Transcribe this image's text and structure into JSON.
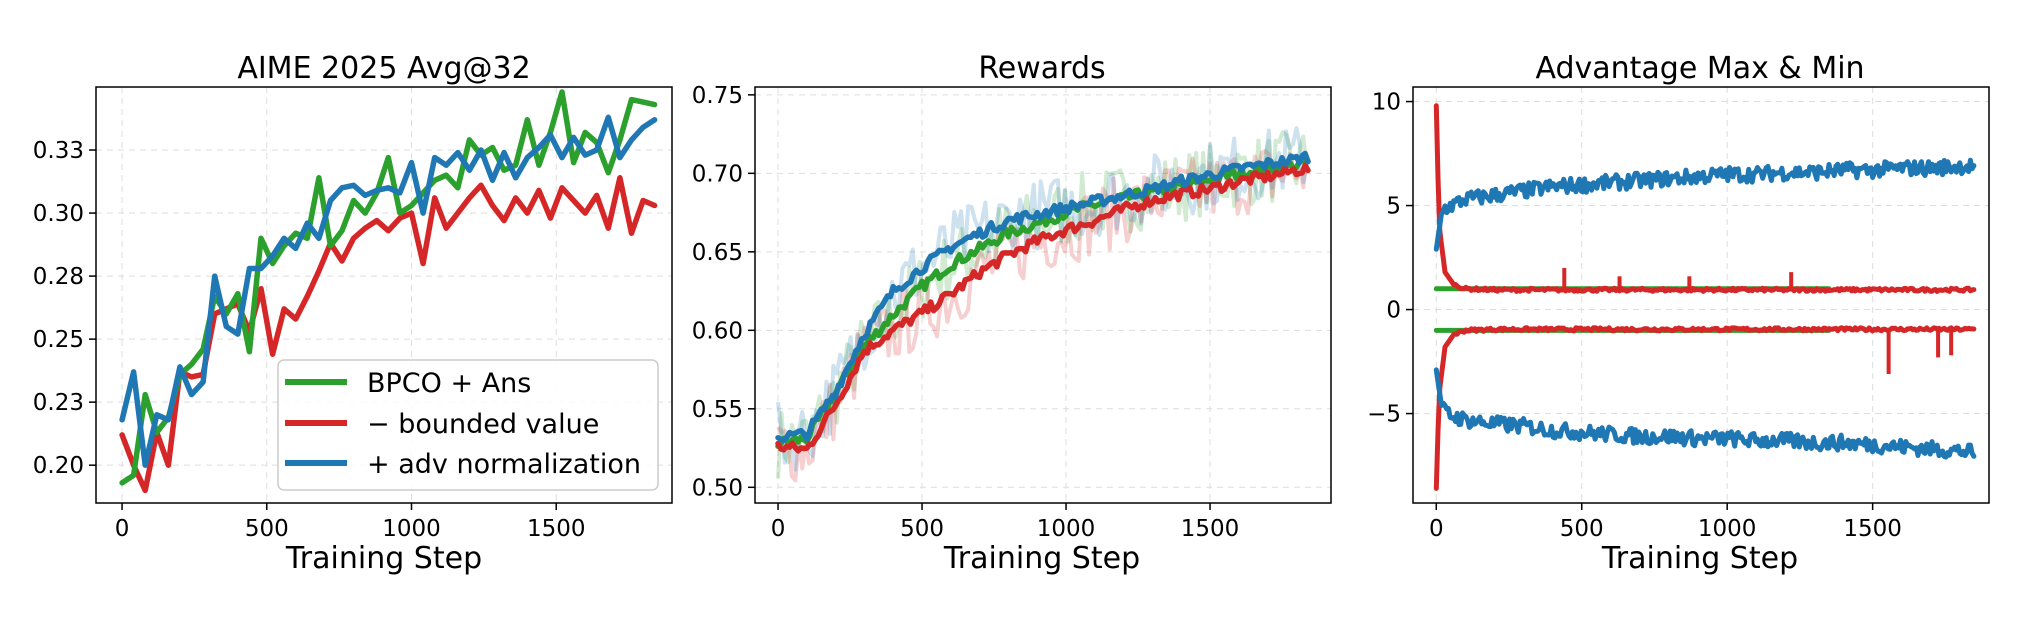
{
  "chart_data": [
    {
      "type": "line",
      "title": "AIME 2025 Avg@32",
      "xlabel": "Training Step",
      "ylabel": "",
      "xlim": [
        -90,
        1900
      ],
      "ylim": [
        0.185,
        0.35
      ],
      "x_ticks": [
        0,
        500,
        1000,
        1500
      ],
      "y_ticks": [
        0.2,
        0.225,
        0.25,
        0.275,
        0.3,
        0.325
      ],
      "y_tick_labels": [
        "0.20",
        "0.23",
        "0.25",
        "0.28",
        "0.30",
        "0.33"
      ],
      "grid": true,
      "legend": "lower-right",
      "series": [
        {
          "name": "BPCO + Ans",
          "color": "#2ca02c",
          "x": [
            0,
            40,
            80,
            120,
            160,
            200,
            240,
            280,
            320,
            360,
            400,
            440,
            480,
            520,
            560,
            600,
            640,
            680,
            720,
            760,
            800,
            840,
            880,
            920,
            960,
            1000,
            1040,
            1080,
            1120,
            1160,
            1200,
            1240,
            1280,
            1320,
            1360,
            1400,
            1440,
            1480,
            1520,
            1560,
            1600,
            1640,
            1680,
            1720,
            1760,
            1800,
            1840
          ],
          "values": [
            0.193,
            0.196,
            0.228,
            0.213,
            0.219,
            0.236,
            0.24,
            0.246,
            0.267,
            0.26,
            0.268,
            0.245,
            0.29,
            0.28,
            0.287,
            0.292,
            0.29,
            0.314,
            0.287,
            0.293,
            0.305,
            0.3,
            0.308,
            0.322,
            0.3,
            0.303,
            0.308,
            0.313,
            0.315,
            0.31,
            0.329,
            0.323,
            0.326,
            0.317,
            0.319,
            0.337,
            0.319,
            0.332,
            0.348,
            0.32,
            0.332,
            0.328,
            0.316,
            0.329,
            0.345,
            0.344,
            0.343
          ]
        },
        {
          "name": "− bounded value",
          "color": "#d62728",
          "x": [
            0,
            40,
            80,
            120,
            160,
            200,
            240,
            280,
            320,
            360,
            400,
            440,
            480,
            520,
            560,
            600,
            640,
            680,
            720,
            760,
            800,
            840,
            880,
            920,
            960,
            1000,
            1040,
            1080,
            1120,
            1160,
            1200,
            1240,
            1280,
            1320,
            1360,
            1400,
            1440,
            1480,
            1520,
            1560,
            1600,
            1640,
            1680,
            1720,
            1760,
            1800,
            1840
          ],
          "values": [
            0.212,
            0.2,
            0.19,
            0.213,
            0.2,
            0.237,
            0.235,
            0.236,
            0.26,
            0.262,
            0.264,
            0.253,
            0.27,
            0.244,
            0.262,
            0.258,
            0.267,
            0.277,
            0.288,
            0.281,
            0.29,
            0.294,
            0.297,
            0.293,
            0.298,
            0.3,
            0.28,
            0.306,
            0.294,
            0.3,
            0.306,
            0.311,
            0.303,
            0.297,
            0.306,
            0.3,
            0.309,
            0.298,
            0.31,
            0.305,
            0.3,
            0.307,
            0.294,
            0.314,
            0.292,
            0.305,
            0.303
          ]
        },
        {
          "name": "+ adv normalization",
          "color": "#1f77b4",
          "x": [
            0,
            40,
            80,
            120,
            160,
            200,
            240,
            280,
            320,
            360,
            400,
            440,
            480,
            520,
            560,
            600,
            640,
            680,
            720,
            760,
            800,
            840,
            880,
            920,
            960,
            1000,
            1040,
            1080,
            1120,
            1160,
            1200,
            1240,
            1280,
            1320,
            1360,
            1400,
            1440,
            1480,
            1520,
            1560,
            1600,
            1640,
            1680,
            1720,
            1760,
            1800,
            1840
          ],
          "values": [
            0.218,
            0.237,
            0.2,
            0.22,
            0.218,
            0.239,
            0.228,
            0.233,
            0.275,
            0.255,
            0.252,
            0.278,
            0.278,
            0.283,
            0.29,
            0.286,
            0.296,
            0.29,
            0.305,
            0.31,
            0.311,
            0.307,
            0.309,
            0.31,
            0.308,
            0.32,
            0.3,
            0.322,
            0.319,
            0.324,
            0.317,
            0.325,
            0.313,
            0.324,
            0.314,
            0.322,
            0.326,
            0.331,
            0.322,
            0.33,
            0.323,
            0.325,
            0.338,
            0.322,
            0.329,
            0.334,
            0.337
          ]
        }
      ]
    },
    {
      "type": "line",
      "title": "Rewards",
      "xlabel": "Training Step",
      "ylabel": "",
      "xlim": [
        -80,
        1920
      ],
      "ylim": [
        0.49,
        0.755
      ],
      "x_ticks": [
        0,
        500,
        1000,
        1500
      ],
      "y_ticks": [
        0.5,
        0.55,
        0.6,
        0.65,
        0.7,
        0.75
      ],
      "y_tick_labels": [
        "0.50",
        "0.55",
        "0.60",
        "0.65",
        "0.70",
        "0.75"
      ],
      "grid": true,
      "series": [
        {
          "name": "BPCO + Ans",
          "color": "#2ca02c",
          "x": [
            0,
            100,
            200,
            300,
            400,
            500,
            600,
            700,
            800,
            900,
            1000,
            1100,
            1200,
            1300,
            1400,
            1500,
            1600,
            1700,
            1800,
            1840
          ],
          "values": [
            0.528,
            0.531,
            0.56,
            0.59,
            0.61,
            0.628,
            0.642,
            0.652,
            0.662,
            0.668,
            0.675,
            0.68,
            0.684,
            0.688,
            0.692,
            0.696,
            0.7,
            0.703,
            0.705,
            0.707
          ]
        },
        {
          "name": "− bounded value",
          "color": "#d62728",
          "x": [
            0,
            100,
            200,
            300,
            400,
            500,
            600,
            700,
            800,
            900,
            1000,
            1100,
            1200,
            1300,
            1400,
            1500,
            1600,
            1700,
            1800,
            1840
          ],
          "values": [
            0.526,
            0.524,
            0.553,
            0.587,
            0.6,
            0.611,
            0.623,
            0.637,
            0.648,
            0.657,
            0.664,
            0.67,
            0.677,
            0.683,
            0.687,
            0.69,
            0.695,
            0.698,
            0.702,
            0.703
          ]
        },
        {
          "name": "+ adv normalization",
          "color": "#1f77b4",
          "x": [
            0,
            100,
            200,
            300,
            400,
            500,
            600,
            700,
            800,
            900,
            1000,
            1100,
            1200,
            1300,
            1400,
            1500,
            1600,
            1700,
            1800,
            1840
          ],
          "values": [
            0.532,
            0.534,
            0.561,
            0.598,
            0.625,
            0.64,
            0.653,
            0.662,
            0.67,
            0.674,
            0.678,
            0.682,
            0.686,
            0.69,
            0.695,
            0.699,
            0.703,
            0.706,
            0.709,
            0.711
          ]
        }
      ]
    },
    {
      "type": "line",
      "title": "Advantage Max & Min",
      "xlabel": "Training Step",
      "ylabel": "",
      "xlim": [
        -80,
        1900
      ],
      "ylim": [
        -9.3,
        10.7
      ],
      "x_ticks": [
        0,
        500,
        1000,
        1500
      ],
      "y_ticks": [
        -5,
        0,
        5,
        10
      ],
      "y_tick_labels": [
        "−5",
        "0",
        "5",
        "10"
      ],
      "grid": true,
      "series": [
        {
          "name": "BPCO + Ans max",
          "color": "#2ca02c",
          "x": [
            0,
            1850
          ],
          "values": [
            1.0,
            1.0
          ]
        },
        {
          "name": "BPCO + Ans min",
          "color": "#2ca02c",
          "x": [
            0,
            1850
          ],
          "values": [
            -1.0,
            -1.0
          ]
        },
        {
          "name": "− bounded value max",
          "color": "#d62728",
          "x": [
            0,
            10,
            30,
            60,
            100,
            200,
            400,
            600,
            800,
            1000,
            1200,
            1400,
            1600,
            1850
          ],
          "values": [
            9.8,
            4.0,
            1.8,
            1.2,
            1.0,
            0.95,
            0.95,
            0.95,
            0.95,
            0.95,
            0.95,
            0.95,
            0.95,
            0.95
          ]
        },
        {
          "name": "− bounded value min",
          "color": "#d62728",
          "x": [
            0,
            10,
            30,
            60,
            100,
            200,
            400,
            600,
            800,
            1000,
            1200,
            1400,
            1600,
            1850
          ],
          "values": [
            -8.6,
            -4.0,
            -1.8,
            -1.2,
            -1.0,
            -0.95,
            -0.95,
            -0.95,
            -0.95,
            -0.95,
            -0.95,
            -0.95,
            -0.95,
            -0.95
          ]
        },
        {
          "name": "+ adv normalization max",
          "color": "#1f77b4",
          "x": [
            0,
            20,
            50,
            100,
            200,
            300,
            400,
            500,
            600,
            700,
            800,
            900,
            1000,
            1100,
            1200,
            1300,
            1400,
            1500,
            1600,
            1700,
            1800,
            1850
          ],
          "values": [
            2.9,
            4.8,
            5.0,
            5.3,
            5.5,
            5.7,
            5.9,
            6.0,
            6.1,
            6.2,
            6.3,
            6.4,
            6.5,
            6.5,
            6.6,
            6.6,
            6.7,
            6.7,
            6.8,
            6.8,
            6.9,
            6.9
          ]
        },
        {
          "name": "+ adv normalization min",
          "color": "#1f77b4",
          "x": [
            0,
            20,
            50,
            100,
            200,
            300,
            400,
            500,
            600,
            700,
            800,
            900,
            1000,
            1100,
            1200,
            1300,
            1400,
            1500,
            1600,
            1700,
            1800,
            1850
          ],
          "values": [
            -2.9,
            -4.8,
            -5.1,
            -5.3,
            -5.5,
            -5.6,
            -5.8,
            -5.9,
            -6.0,
            -6.1,
            -6.1,
            -6.2,
            -6.2,
            -6.3,
            -6.3,
            -6.4,
            -6.4,
            -6.5,
            -6.6,
            -6.7,
            -6.8,
            -6.9
          ]
        }
      ]
    }
  ]
}
